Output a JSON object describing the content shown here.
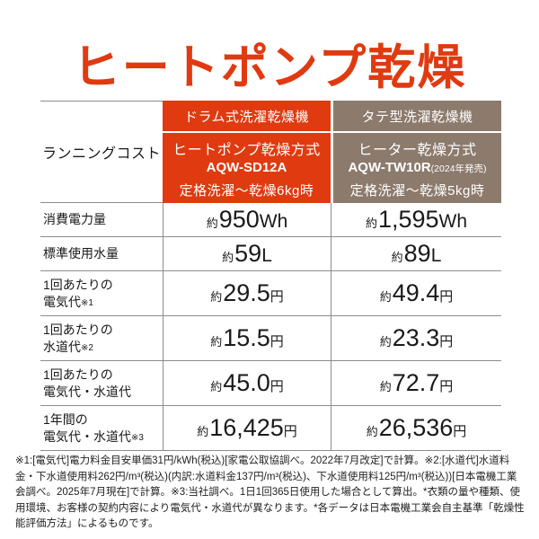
{
  "colors": {
    "accent_red": "#e03a10",
    "accent_brown": "#8c7a6c",
    "grid_line": "#8c8c8c"
  },
  "title": {
    "text": "ヒートポンプ乾燥"
  },
  "table": {
    "corner_label": "ランニングコスト",
    "columns": [
      {
        "category": "ドラム式洗濯乾燥機",
        "method": "ヒートポンプ乾燥方式",
        "model": "AQW-SD12A",
        "model_note": "",
        "condition": "定格洗濯〜乾燥6kg時"
      },
      {
        "category": "タテ型洗濯乾燥機",
        "method": "ヒーター乾燥方式",
        "model": "AQW-TW10R",
        "model_note": "(2024年発売)",
        "condition": "定格洗濯〜乾燥5kg時"
      }
    ],
    "rows": [
      {
        "label1": "消費電力量",
        "label2": "",
        "ref": "",
        "values": [
          {
            "approx": "約",
            "num": "950",
            "unit": "Wh"
          },
          {
            "approx": "約",
            "num": "1,595",
            "unit": "Wh"
          }
        ]
      },
      {
        "label1": "標準使用水量",
        "label2": "",
        "ref": "",
        "values": [
          {
            "approx": "約",
            "num": "59",
            "unit": "L"
          },
          {
            "approx": "約",
            "num": "89",
            "unit": "L"
          }
        ]
      },
      {
        "label1": "1回あたりの",
        "label2": "電気代",
        "ref": "※1",
        "values": [
          {
            "approx": "約",
            "num": "29.5",
            "unit": "円"
          },
          {
            "approx": "約",
            "num": "49.4",
            "unit": "円"
          }
        ]
      },
      {
        "label1": "1回あたりの",
        "label2": "水道代",
        "ref": "※2",
        "values": [
          {
            "approx": "約",
            "num": "15.5",
            "unit": "円"
          },
          {
            "approx": "約",
            "num": "23.3",
            "unit": "円"
          }
        ]
      },
      {
        "label1": "1回あたりの",
        "label2": "電気代・水道代",
        "ref": "",
        "values": [
          {
            "approx": "約",
            "num": "45.0",
            "unit": "円"
          },
          {
            "approx": "約",
            "num": "72.7",
            "unit": "円"
          }
        ]
      },
      {
        "label1": "1年間の",
        "label2": "電気代・水道代",
        "ref": "※3",
        "values": [
          {
            "approx": "約",
            "num": "16,425",
            "unit": "円"
          },
          {
            "approx": "約",
            "num": "26,536",
            "unit": "円"
          }
        ]
      }
    ]
  },
  "footnotes": "※1:[電気代]電力料金目安単価31円/kWh(税込)[家電公取協調べ。2022年7月改定]で計算。※2:[水道代]水道料金・下水道使用料262円/m³(税込)(内訳:水道料金137円/m³(税込)、下水道使用料125円/m³(税込))[日本電機工業会調べ。2025年7月現在]で計算。※3:当社調べ。1日1回365日使用した場合として算出。*衣類の量や種類、使用環境、お客様の契約内容により電気代・水道代が異なります。*各データは日本電機工業会自主基準「乾燥性能評価方法」によるものです。"
}
